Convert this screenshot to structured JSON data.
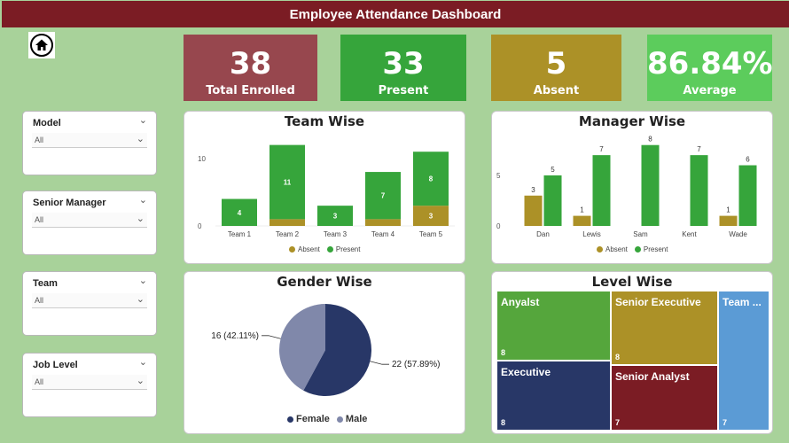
{
  "header": {
    "title": "Employee Attendance Dashboard"
  },
  "icons": {
    "home": "home-icon"
  },
  "kpis": [
    {
      "value": "38",
      "label": "Total Enrolled",
      "color": "#97474e"
    },
    {
      "value": "33",
      "label": "Present",
      "color": "#36a53b"
    },
    {
      "value": "5",
      "label": "Absent",
      "color": "#ac9127"
    },
    {
      "value": "86.84%",
      "label": "Average",
      "color": "#5ccc5c"
    }
  ],
  "slicers": [
    {
      "label": "Model",
      "value": "All"
    },
    {
      "label": "Senior Manager",
      "value": "All"
    },
    {
      "label": "Team",
      "value": "All"
    },
    {
      "label": "Job Level",
      "value": "All"
    }
  ],
  "colors": {
    "absent": "#ac9127",
    "present": "#36a53b",
    "female": "#283767",
    "male": "#8088aa"
  },
  "chart_data": [
    {
      "type": "bar",
      "title": "Team Wise",
      "stacked": true,
      "categories": [
        "Team 1",
        "Team 2",
        "Team 3",
        "Team 4",
        "Team 5"
      ],
      "series": [
        {
          "name": "Absent",
          "values": [
            0,
            1,
            0,
            1,
            3
          ]
        },
        {
          "name": "Present",
          "values": [
            4,
            11,
            3,
            7,
            8
          ]
        }
      ],
      "yticks": [
        "0",
        "10"
      ],
      "ylim": [
        0,
        13
      ],
      "legend": "bottom"
    },
    {
      "type": "bar",
      "title": "Manager Wise",
      "stacked": false,
      "categories": [
        "Dan",
        "Lewis",
        "Sam",
        "Kent",
        "Wade"
      ],
      "series": [
        {
          "name": "Absent",
          "values": [
            3,
            1,
            0,
            0,
            1
          ]
        },
        {
          "name": "Present",
          "values": [
            5,
            7,
            8,
            7,
            6
          ]
        }
      ],
      "yticks": [
        "0",
        "5"
      ],
      "ylim": [
        0,
        8.5
      ],
      "legend": "bottom"
    },
    {
      "type": "pie",
      "title": "Gender Wise",
      "slices": [
        {
          "name": "Female",
          "value": 22,
          "label": "22 (57.89%)"
        },
        {
          "name": "Male",
          "value": 16,
          "label": "16 (42.11%)"
        }
      ],
      "legend": "bottom"
    },
    {
      "type": "treemap",
      "title": "Level Wise",
      "items": [
        {
          "name": "Anyalst",
          "value": 8,
          "color": "#55a63c"
        },
        {
          "name": "Senior Executive",
          "value": 8,
          "color": "#ac9127"
        },
        {
          "name": "Team ...",
          "value": 7,
          "color": "#5b9bd5"
        },
        {
          "name": "Executive",
          "value": 8,
          "color": "#283767"
        },
        {
          "name": "Senior Analyst",
          "value": 7,
          "color": "#7b1c24"
        }
      ]
    }
  ]
}
